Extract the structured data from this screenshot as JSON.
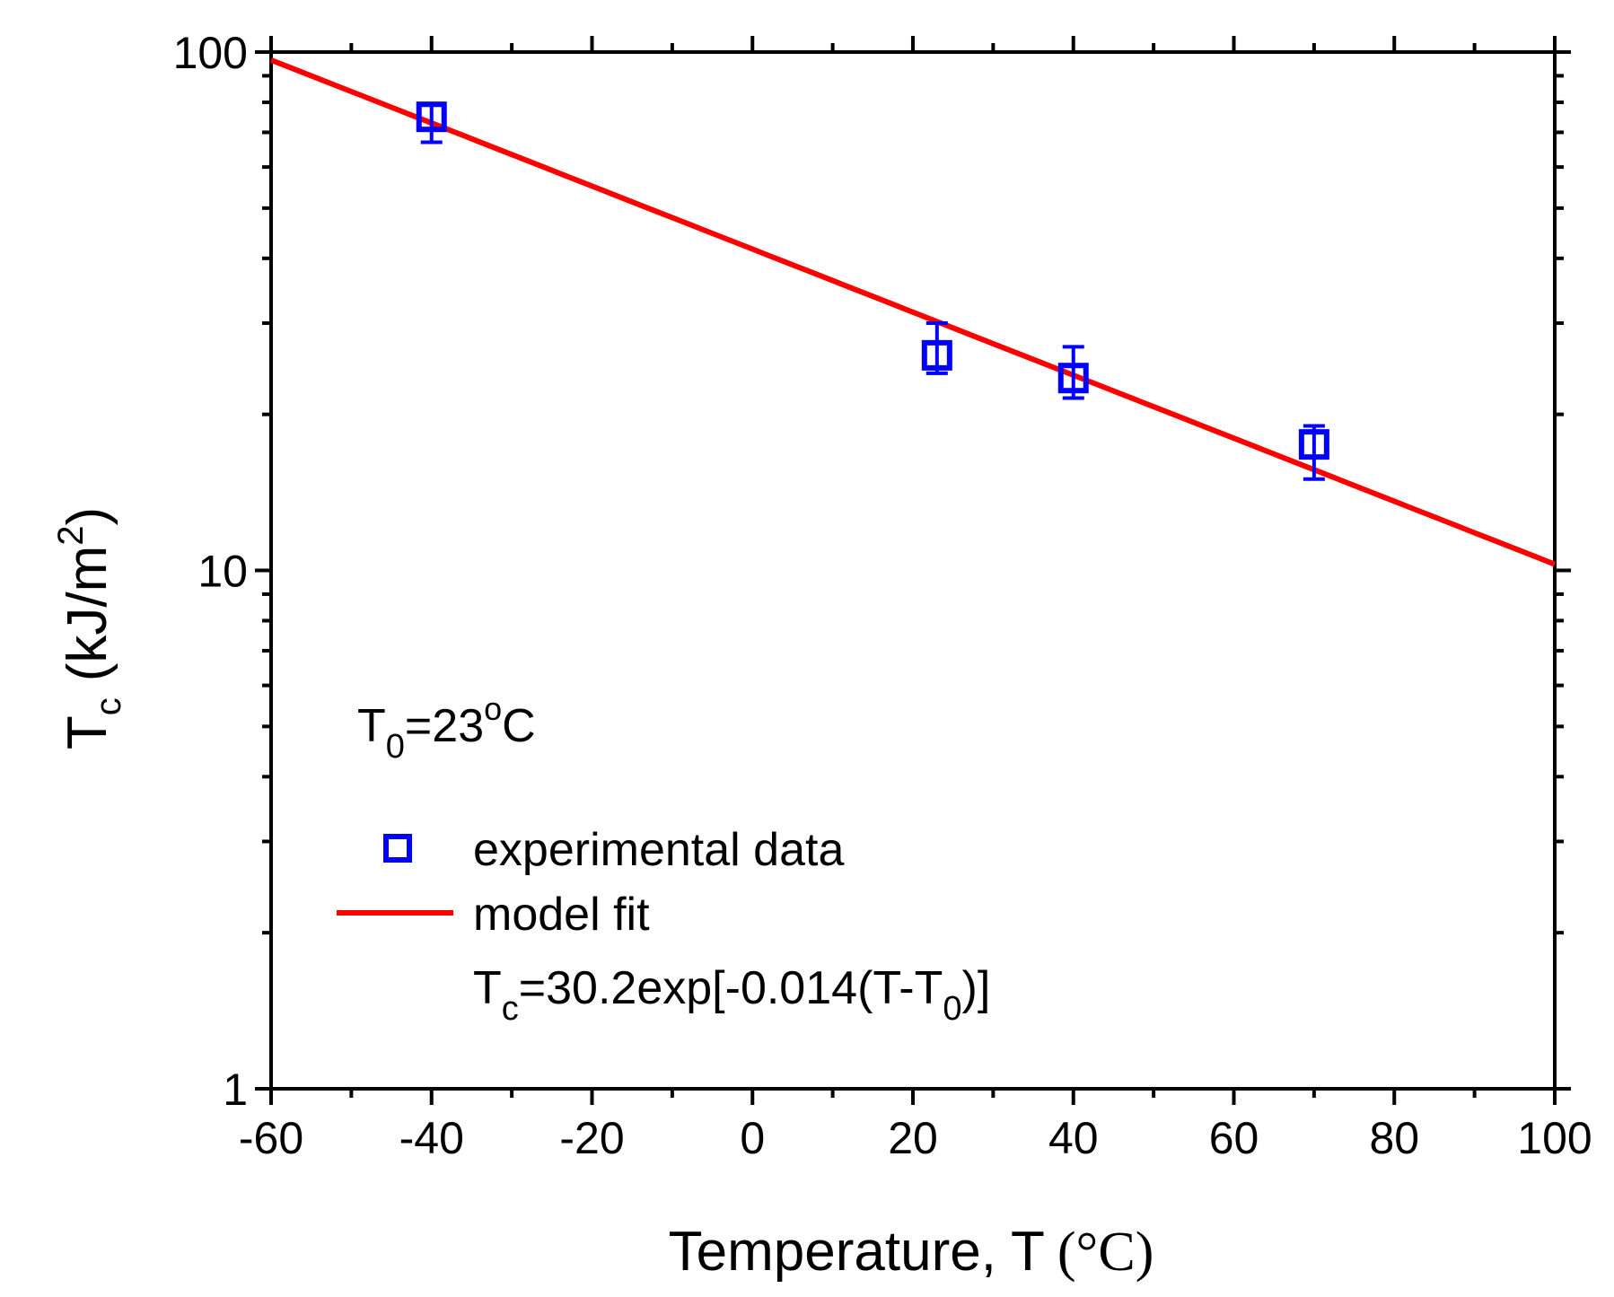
{
  "chart_data": {
    "type": "scatter",
    "title": "",
    "xlabel": "Temperature, T",
    "xlabel_unit": "(°C)",
    "ylabel_main": "T",
    "ylabel_sub": "c",
    "ylabel_unit": "(kJ/m",
    "ylabel_sup": "2",
    "ylabel_close": ")",
    "xlim": [
      -60,
      100
    ],
    "ylim": [
      1,
      100
    ],
    "yscale": "log",
    "x_ticks": [
      -60,
      -40,
      -20,
      0,
      20,
      40,
      60,
      80,
      100
    ],
    "x_tick_labels": [
      "-60",
      "-40",
      "-20",
      "0",
      "20",
      "40",
      "60",
      "80",
      "100"
    ],
    "y_ticks": [
      1,
      10,
      100
    ],
    "y_tick_labels": [
      "1",
      "10",
      "100"
    ],
    "grid": false,
    "series": [
      {
        "name": "experimental data",
        "type": "scatter",
        "marker": "square-open",
        "color": "#0000ff",
        "x": [
          -40,
          23,
          40,
          70
        ],
        "y": [
          75,
          26,
          23.5,
          17.5
        ],
        "err_low": [
          8,
          2,
          2,
          2.5
        ],
        "err_high": [
          4,
          4,
          3.5,
          1.5
        ]
      },
      {
        "name": "model fit",
        "type": "line",
        "color": "#ff0000",
        "equation": {
          "a": 30.2,
          "b": -0.014,
          "t0": 23
        },
        "x_range": [
          -60,
          100
        ]
      }
    ],
    "legend": {
      "placement": "lower-left",
      "entries": [
        "experimental data",
        "model fit"
      ],
      "equation_prefix": "T",
      "equation_sub": "c",
      "equation_mid": "=30.2exp[-0.014(T-T",
      "equation_sub2": "0",
      "equation_end": ")]"
    },
    "annotation": {
      "main": "T",
      "sub": "0",
      "rest": "=23",
      "sup": "o",
      "unit": "C"
    }
  }
}
